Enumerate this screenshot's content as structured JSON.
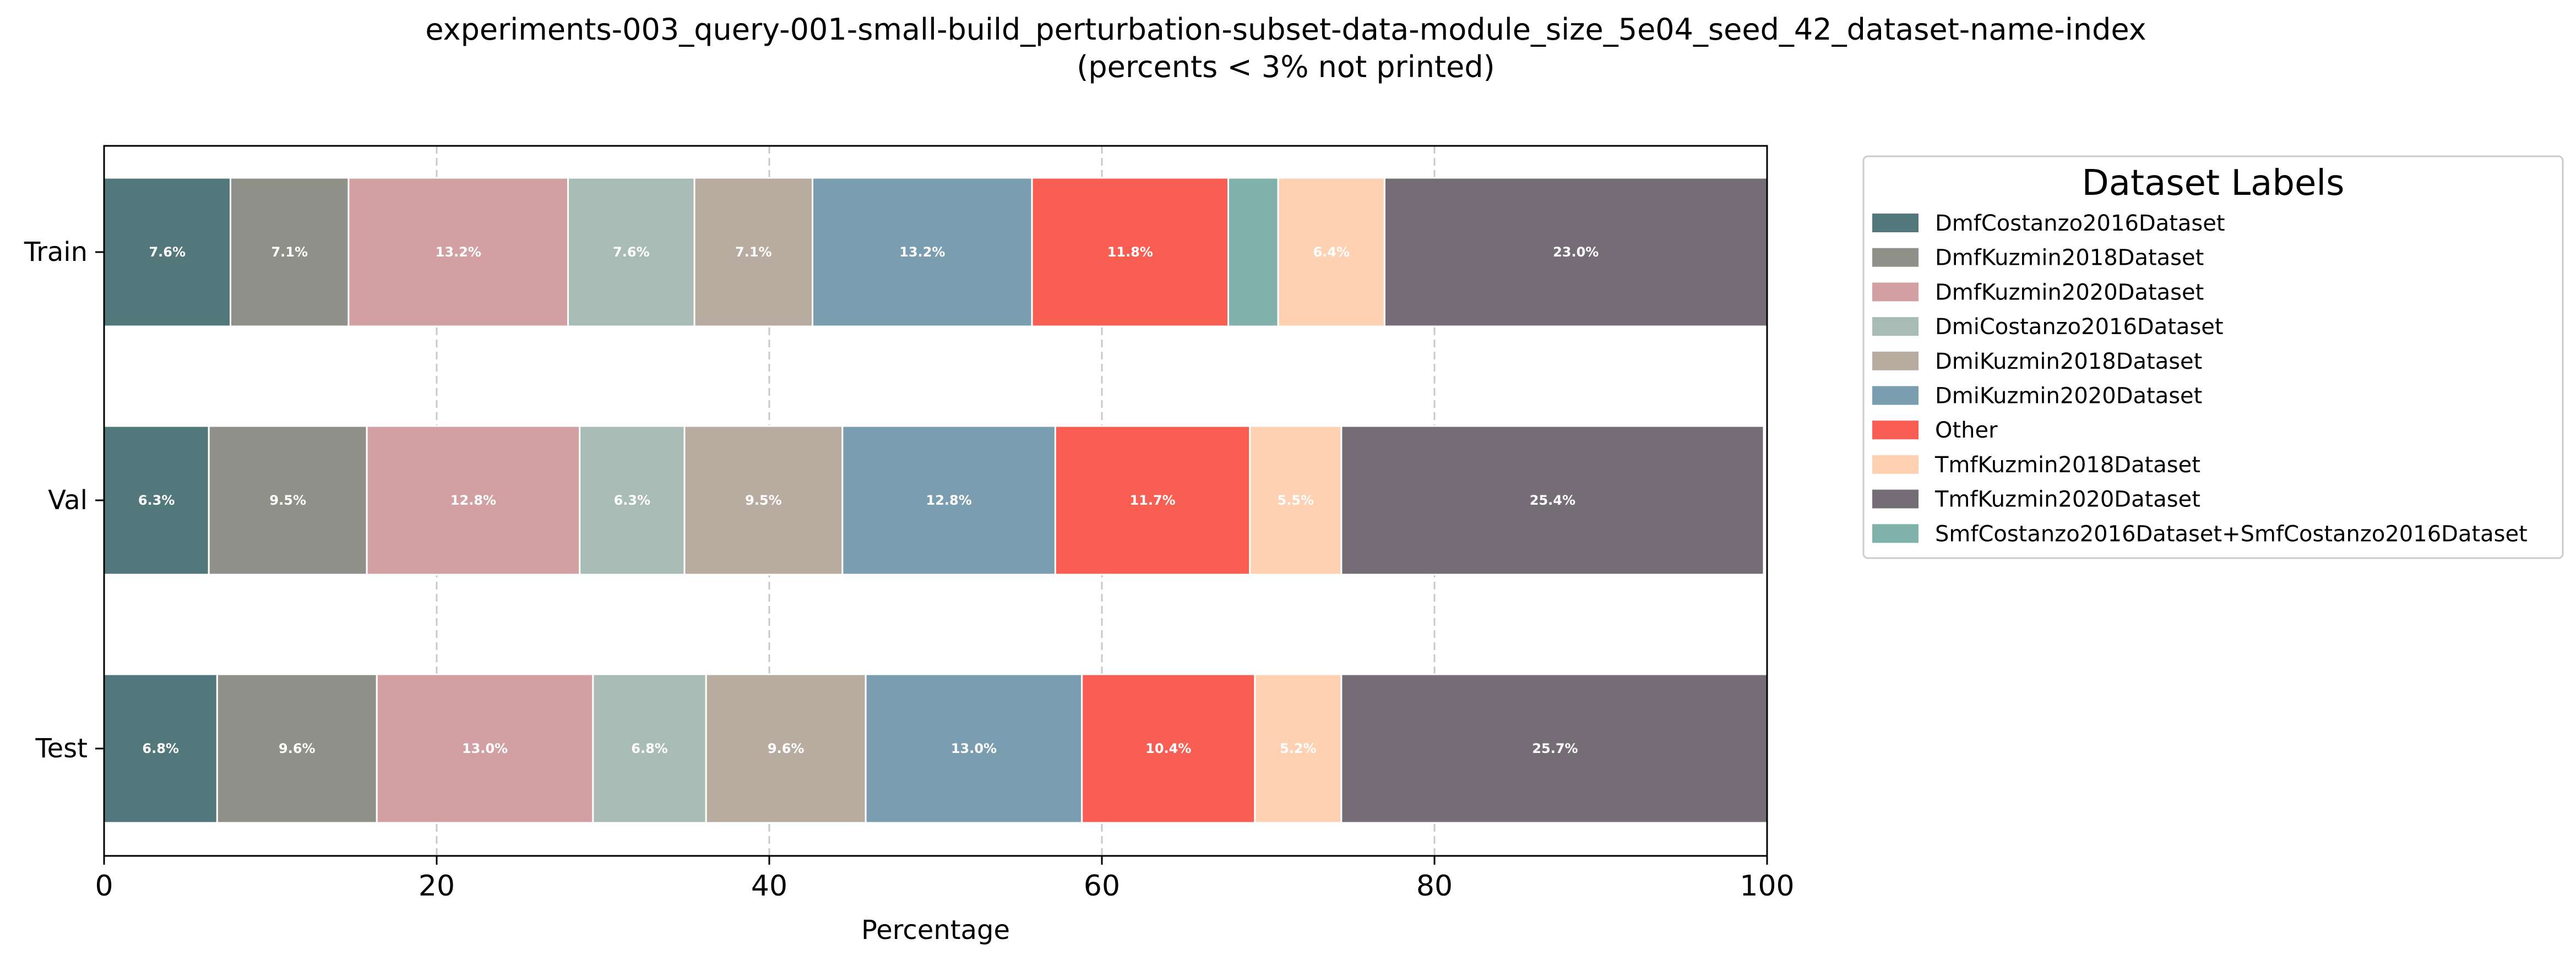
{
  "chart_data": {
    "type": "bar",
    "orientation": "horizontal",
    "stacked": true,
    "title": "experiments-003_query-001-small-build_perturbation-subset-data-module_size_5e04_seed_42_dataset-name-index",
    "subtitle": "(percents < 3% not printed)",
    "xlabel": "Percentage",
    "ylabel": "",
    "xlim": [
      0,
      100
    ],
    "xticks": [
      0,
      20,
      40,
      60,
      80,
      100
    ],
    "grid": "vertical dashed",
    "categories": [
      "Train",
      "Val",
      "Test"
    ],
    "legend": {
      "title": "Dataset Labels",
      "placement": "right-outside",
      "entries": [
        "DmfCostanzo2016Dataset",
        "DmfKuzmin2018Dataset",
        "DmfKuzmin2020Dataset",
        "DmiCostanzo2016Dataset",
        "DmiKuzmin2018Dataset",
        "DmiKuzmin2020Dataset",
        "Other",
        "TmfKuzmin2018Dataset",
        "TmfKuzmin2020Dataset",
        "SmfCostanzo2016Dataset+SmfCostanzo2016Dataset"
      ]
    },
    "stack_order": [
      "DmfCostanzo2016Dataset",
      "DmfKuzmin2018Dataset",
      "DmfKuzmin2020Dataset",
      "DmiCostanzo2016Dataset",
      "DmiKuzmin2018Dataset",
      "DmiKuzmin2020Dataset",
      "Other",
      "SmfCostanzo2016Dataset+SmfCostanzo2016Dataset",
      "TmfKuzmin2018Dataset",
      "TmfKuzmin2020Dataset"
    ],
    "series": [
      {
        "name": "DmfCostanzo2016Dataset",
        "color": "#52787c",
        "values": [
          7.6,
          6.3,
          6.8
        ],
        "labels": [
          "7.6%",
          "6.3%",
          "6.8%"
        ]
      },
      {
        "name": "DmfKuzmin2018Dataset",
        "color": "#8f9189",
        "values": [
          7.1,
          9.5,
          9.6
        ],
        "labels": [
          "7.1%",
          "9.5%",
          "9.6%"
        ]
      },
      {
        "name": "DmfKuzmin2020Dataset",
        "color": "#d2a0a3",
        "values": [
          13.2,
          12.8,
          13.0
        ],
        "labels": [
          "13.2%",
          "12.8%",
          "13.0%"
        ]
      },
      {
        "name": "DmiCostanzo2016Dataset",
        "color": "#a8bcb5",
        "values": [
          7.6,
          6.3,
          6.8
        ],
        "labels": [
          "7.6%",
          "6.3%",
          "6.8%"
        ]
      },
      {
        "name": "DmiKuzmin2018Dataset",
        "color": "#b8ab9f",
        "values": [
          7.1,
          9.5,
          9.6
        ],
        "labels": [
          "7.1%",
          "9.5%",
          "9.6%"
        ]
      },
      {
        "name": "DmiKuzmin2020Dataset",
        "color": "#7a9eaf",
        "values": [
          13.2,
          12.8,
          13.0
        ],
        "labels": [
          "13.2%",
          "12.8%",
          "13.0%"
        ]
      },
      {
        "name": "Other",
        "color": "#f85e52",
        "values": [
          11.8,
          11.7,
          10.4
        ],
        "labels": [
          "11.8%",
          "11.7%",
          "10.4%"
        ]
      },
      {
        "name": "SmfCostanzo2016Dataset+SmfCostanzo2016Dataset",
        "color": "#80b1aa",
        "values": [
          3.0,
          0,
          0
        ],
        "labels": [
          "",
          "",
          ""
        ]
      },
      {
        "name": "TmfKuzmin2018Dataset",
        "color": "#fed1b3",
        "values": [
          6.4,
          5.5,
          5.2
        ],
        "labels": [
          "6.4%",
          "5.5%",
          "5.2%"
        ]
      },
      {
        "name": "TmfKuzmin2020Dataset",
        "color": "#746d75",
        "values": [
          23.0,
          25.4,
          25.7
        ],
        "labels": [
          "23.0%",
          "25.4%",
          "25.7%"
        ]
      }
    ]
  }
}
